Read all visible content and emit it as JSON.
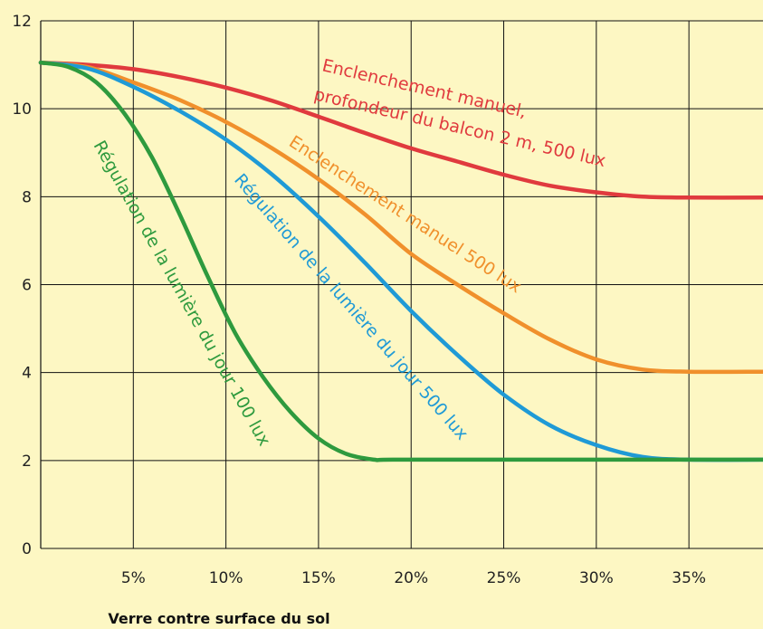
{
  "chart_data": {
    "type": "line",
    "title": "",
    "xlabel": "Verre contre surface du sol",
    "ylabel": "",
    "xlim": [
      0,
      39
    ],
    "ylim": [
      0,
      12
    ],
    "x_ticks": [
      5,
      10,
      15,
      20,
      25,
      30,
      35
    ],
    "x_tick_labels": [
      "5%",
      "10%",
      "15%",
      "20%",
      "25%",
      "30%",
      "35%"
    ],
    "y_ticks": [
      0,
      2,
      4,
      6,
      8,
      10,
      12
    ],
    "y_tick_labels": [
      "0",
      "2",
      "4",
      "6",
      "8",
      "10",
      "12"
    ],
    "grid": true,
    "background": "#fdf7c3",
    "series": [
      {
        "color": "#e03a3e",
        "x": [
          0,
          2.5,
          5,
          7.5,
          10,
          12.5,
          15,
          17.5,
          20,
          22.5,
          25,
          27.5,
          30,
          32.5,
          35,
          39
        ],
        "y": [
          11.05,
          11.0,
          10.9,
          10.72,
          10.48,
          10.18,
          9.82,
          9.45,
          9.1,
          8.8,
          8.5,
          8.25,
          8.1,
          8.0,
          7.98,
          7.98
        ]
      },
      {
        "color": "#f0902c",
        "x": [
          0,
          2.5,
          5,
          7.5,
          10,
          12.5,
          15,
          17.5,
          20,
          22.5,
          25,
          27.5,
          30,
          32.5,
          35,
          39
        ],
        "y": [
          11.05,
          10.95,
          10.6,
          10.2,
          9.7,
          9.1,
          8.4,
          7.6,
          6.7,
          6.0,
          5.35,
          4.75,
          4.3,
          4.07,
          4.02,
          4.02
        ]
      },
      {
        "color": "#1f9ad6",
        "x": [
          0,
          2.5,
          5,
          7.5,
          10,
          12.5,
          15,
          17.5,
          20,
          22.5,
          25,
          27.5,
          30,
          32.5,
          35,
          39
        ],
        "y": [
          11.05,
          10.92,
          10.5,
          9.95,
          9.3,
          8.5,
          7.55,
          6.5,
          5.4,
          4.4,
          3.5,
          2.8,
          2.35,
          2.08,
          2.02,
          2.02
        ]
      },
      {
        "color": "#2e9a3e",
        "x": [
          0,
          1.5,
          3,
          4.5,
          6,
          7.5,
          9,
          10.5,
          12,
          13.5,
          15,
          16.5,
          18,
          19,
          25,
          39
        ],
        "y": [
          11.05,
          10.95,
          10.6,
          9.9,
          8.9,
          7.6,
          6.2,
          4.9,
          3.9,
          3.1,
          2.5,
          2.15,
          2.02,
          2.02,
          2.02,
          2.02
        ]
      }
    ],
    "annotations": [
      {
        "text": "Enclenchement manuel,",
        "color": "#e03a3e"
      },
      {
        "text": "profondeur du balcon 2 m, 500 lux",
        "color": "#e03a3e"
      },
      {
        "text": "Enclenchement manuel 500 lux",
        "color": "#f0902c"
      },
      {
        "text": "Régulation de la lumière du jour 500 lux",
        "color": "#1f9ad6"
      },
      {
        "text": "Régulation de la lumière du jour 100 lux",
        "color": "#2e9a3e"
      }
    ]
  }
}
